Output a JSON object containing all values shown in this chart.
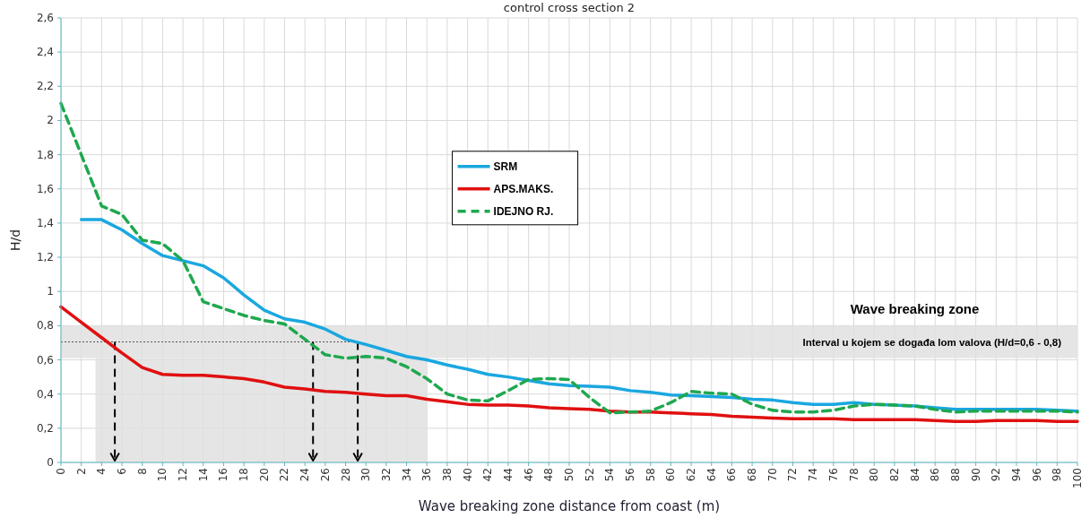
{
  "chart_data": {
    "type": "line",
    "title": "control cross section 2",
    "xlabel": "Wave breaking zone distance from coast (m)",
    "ylabel": "H/d",
    "x": [
      0,
      2,
      4,
      6,
      8,
      10,
      12,
      14,
      16,
      18,
      20,
      22,
      24,
      26,
      28,
      30,
      32,
      34,
      36,
      38,
      40,
      42,
      44,
      46,
      48,
      50,
      52,
      54,
      56,
      58,
      60,
      62,
      64,
      66,
      68,
      70,
      72,
      74,
      76,
      78,
      80,
      82,
      84,
      86,
      88,
      90,
      92,
      94,
      96,
      98,
      100
    ],
    "series": [
      {
        "name": "SRM",
        "color": "#1aa7e0",
        "values": [
          null,
          1.42,
          1.42,
          1.36,
          1.28,
          1.21,
          1.18,
          1.15,
          1.08,
          0.98,
          0.89,
          0.84,
          0.82,
          0.78,
          0.72,
          0.69,
          0.655,
          0.62,
          0.6,
          0.57,
          0.545,
          0.515,
          0.5,
          0.48,
          0.46,
          0.45,
          0.445,
          0.44,
          0.42,
          0.41,
          0.395,
          0.39,
          0.385,
          0.38,
          0.37,
          0.365,
          0.35,
          0.34,
          0.34,
          0.35,
          0.34,
          0.335,
          0.33,
          0.32,
          0.31,
          0.31,
          0.31,
          0.31,
          0.31,
          0.305,
          0.3
        ]
      },
      {
        "name": "APS.MAKS.",
        "color": "#e01010",
        "values": [
          0.91,
          0.82,
          0.73,
          0.64,
          0.555,
          0.515,
          0.51,
          0.51,
          0.5,
          0.49,
          0.47,
          0.44,
          0.43,
          0.415,
          0.41,
          0.4,
          0.39,
          0.39,
          0.37,
          0.355,
          0.34,
          0.335,
          0.335,
          0.33,
          0.32,
          0.315,
          0.31,
          0.3,
          0.295,
          0.295,
          0.29,
          0.285,
          0.28,
          0.27,
          0.265,
          0.26,
          0.255,
          0.255,
          0.255,
          0.25,
          0.25,
          0.25,
          0.25,
          0.245,
          0.24,
          0.24,
          0.245,
          0.245,
          0.245,
          0.24,
          0.24
        ]
      },
      {
        "name": "IDEJNO RJ.",
        "color": "#1fa84f",
        "line_style": "dashed",
        "values": [
          2.1,
          1.8,
          1.5,
          1.45,
          1.3,
          1.28,
          1.18,
          0.94,
          0.9,
          0.86,
          0.83,
          0.81,
          0.72,
          0.63,
          0.61,
          0.62,
          0.61,
          0.56,
          0.49,
          0.4,
          0.365,
          0.36,
          0.42,
          0.485,
          0.49,
          0.485,
          0.38,
          0.29,
          0.295,
          0.3,
          0.35,
          0.415,
          0.405,
          0.4,
          0.34,
          0.305,
          0.295,
          0.295,
          0.305,
          0.33,
          0.34,
          0.335,
          0.33,
          0.31,
          0.295,
          0.3,
          0.3,
          0.3,
          0.3,
          0.3,
          0.295
        ]
      }
    ],
    "xlim": [
      0,
      100
    ],
    "xticks": [
      0,
      2,
      4,
      6,
      8,
      10,
      12,
      14,
      16,
      18,
      20,
      22,
      24,
      26,
      28,
      30,
      32,
      34,
      36,
      38,
      40,
      42,
      44,
      46,
      48,
      50,
      52,
      54,
      56,
      58,
      60,
      62,
      64,
      66,
      68,
      70,
      72,
      74,
      76,
      78,
      80,
      82,
      84,
      86,
      88,
      90,
      92,
      94,
      96,
      98,
      100
    ],
    "ylim": [
      0,
      2.6
    ],
    "yticks": [
      0,
      {
        "value": 0.2,
        "label": "0,2"
      },
      {
        "value": 0.4,
        "label": "0,4"
      },
      {
        "value": 0.6,
        "label": "0,6"
      },
      {
        "value": 0.8,
        "label": "0,8"
      },
      1,
      {
        "value": 1.2,
        "label": "1,2"
      },
      {
        "value": 1.4,
        "label": "1,4"
      },
      {
        "value": 1.6,
        "label": "1,6"
      },
      {
        "value": 1.8,
        "label": "1,8"
      },
      2,
      {
        "value": 2.2,
        "label": "2,2"
      },
      {
        "value": 2.4,
        "label": "2,4"
      },
      {
        "value": 2.6,
        "label": "2,6"
      }
    ],
    "bands": [
      {
        "axis": "y",
        "from": 0.61,
        "to": 0.8,
        "label": "Interval u kojem se događa lom valova (H/d=0,6 - 0,8)",
        "color": "#e0e0e0"
      },
      {
        "axis": "x",
        "from": 3.4,
        "to": 36,
        "color": "#e0e0e0"
      }
    ],
    "ref_lines": [
      {
        "axis": "y",
        "value": 0.705,
        "line_style": "dotted",
        "color": "#555555"
      },
      {
        "axis": "x",
        "value": 5.3,
        "line_style": "dashed",
        "color": "#000000"
      },
      {
        "axis": "x",
        "value": 24.8,
        "line_style": "dashed",
        "color": "#000000"
      },
      {
        "axis": "x",
        "value": 29.2,
        "line_style": "dashed",
        "color": "#000000"
      }
    ],
    "annotations": [
      "Wave breaking zone"
    ],
    "grid": true,
    "legend": "center"
  }
}
